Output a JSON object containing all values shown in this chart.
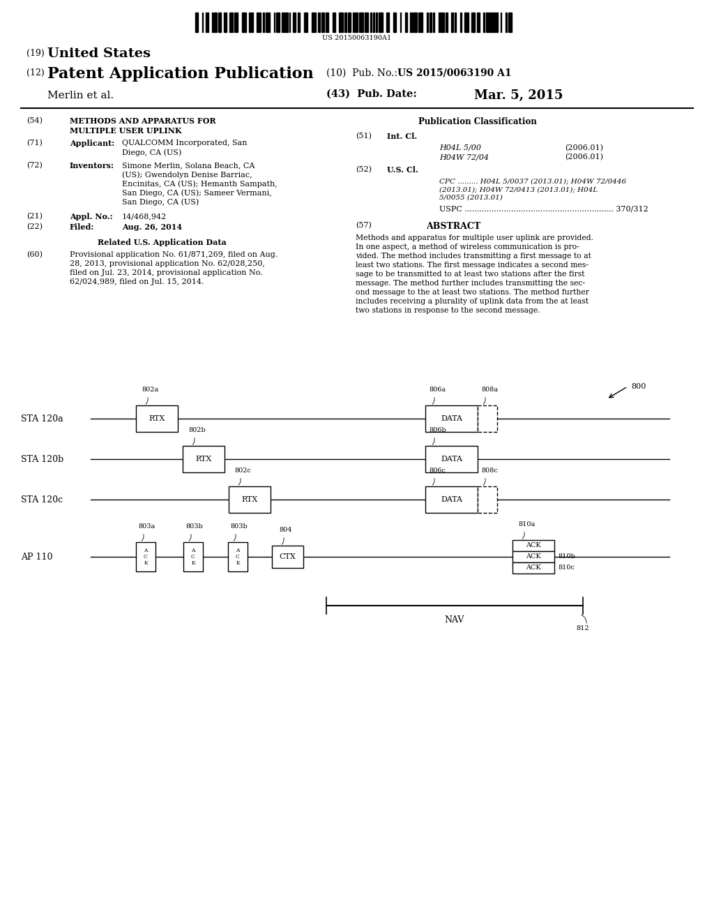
{
  "bg_color": "#ffffff",
  "page_width": 10.24,
  "page_height": 13.2,
  "barcode_text": "US 20150063190A1",
  "abstract": "Methods and apparatus for multiple user uplink are provided.\nIn one aspect, a method of wireless communication is pro-\nvided. The method includes transmitting a first message to at\nleast two stations. The first message indicates a second mes-\nsage to be transmitted to at least two stations after the first\nmessage. The method further includes transmitting the sec-\nond message to the at least two stations. The method further\nincludes receiving a plurality of uplink data from the at least\ntwo stations in response to the second message."
}
